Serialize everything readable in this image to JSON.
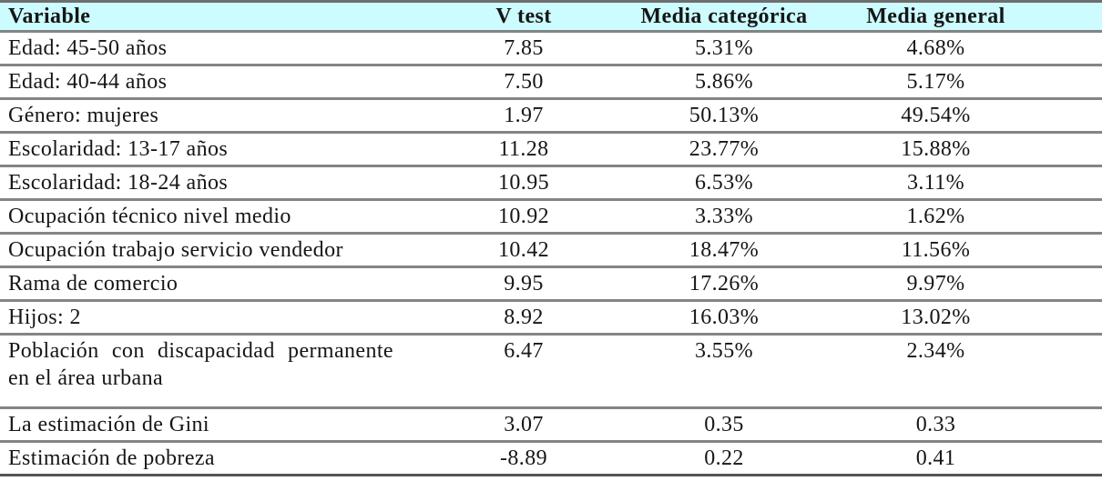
{
  "table": {
    "columns": [
      {
        "key": "variable",
        "label": "Variable"
      },
      {
        "key": "v_test",
        "label": "V test"
      },
      {
        "key": "media_categorica",
        "label": "Media categórica"
      },
      {
        "key": "media_general",
        "label": "Media general"
      }
    ],
    "rows": [
      {
        "variable": "Edad: 45-50 años",
        "v_test": "7.85",
        "media_categorica": "5.31%",
        "media_general": "4.68%"
      },
      {
        "variable": "Edad: 40-44 años",
        "v_test": "7.50",
        "media_categorica": "5.86%",
        "media_general": "5.17%"
      },
      {
        "variable": "Género: mujeres",
        "v_test": "1.97",
        "media_categorica": "50.13%",
        "media_general": "49.54%"
      },
      {
        "variable": "Escolaridad: 13-17 años",
        "v_test": "11.28",
        "media_categorica": "23.77%",
        "media_general": "15.88%"
      },
      {
        "variable": "Escolaridad: 18-24 años",
        "v_test": "10.95",
        "media_categorica": "6.53%",
        "media_general": "3.11%"
      },
      {
        "variable": "Ocupación técnico nivel medio",
        "v_test": "10.92",
        "media_categorica": "3.33%",
        "media_general": "1.62%"
      },
      {
        "variable": "Ocupación trabajo servicio vendedor",
        "v_test": "10.42",
        "media_categorica": "18.47%",
        "media_general": "11.56%"
      },
      {
        "variable": "Rama de comercio",
        "v_test": "9.95",
        "media_categorica": "17.26%",
        "media_general": "9.97%"
      },
      {
        "variable": "Hijos: 2",
        "v_test": "8.92",
        "media_categorica": "16.03%",
        "media_general": "13.02%"
      },
      {
        "variable": "Población con discapacidad permanente en el área urbana",
        "v_test": "6.47",
        "media_categorica": "3.55%",
        "media_general": "2.34%"
      },
      {
        "variable": "La estimación de Gini",
        "v_test": "3.07",
        "media_categorica": "0.35",
        "media_general": "0.33"
      },
      {
        "variable": "Estimación de pobreza",
        "v_test": "-8.89",
        "media_categorica": "0.22",
        "media_general": "0.41"
      }
    ],
    "colors": {
      "header_background": "#ccfcff",
      "rule_gray": "#848484",
      "text": "#161616"
    }
  }
}
